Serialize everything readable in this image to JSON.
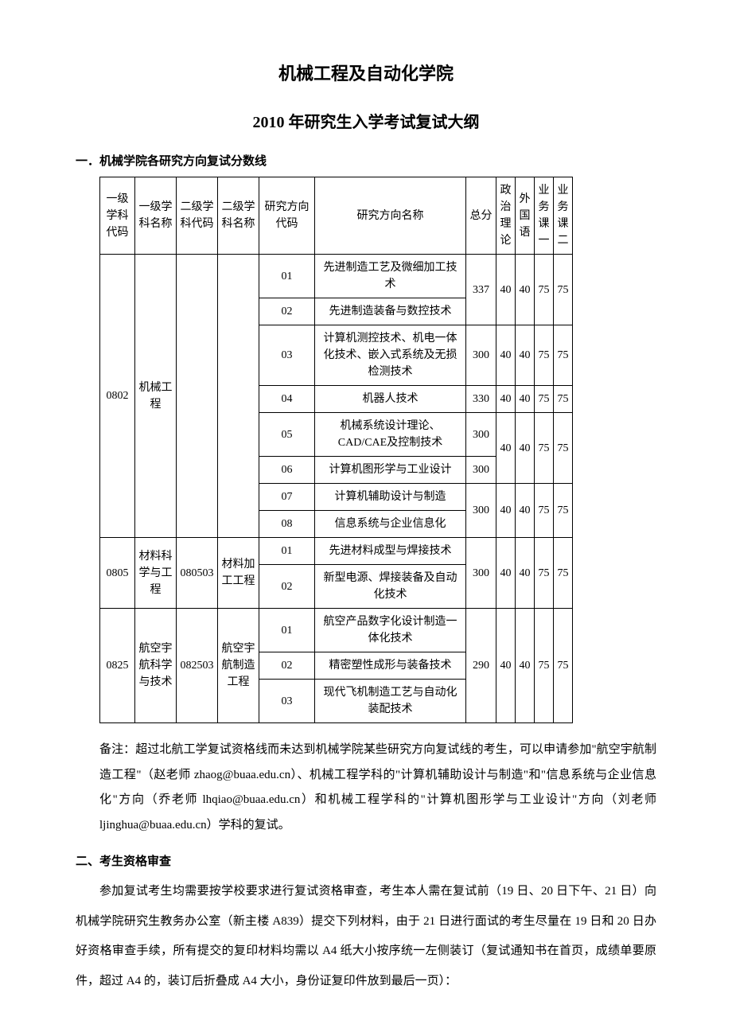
{
  "titles": {
    "main": "机械工程及自动化学院",
    "sub": "2010 年研究生入学考试复试大纲"
  },
  "section1": {
    "heading": "一．机械学院各研究方向复试分数线",
    "headers": {
      "code1": "一级学科代码",
      "name1": "一级学科名称",
      "code2": "二级学科代码",
      "name2": "二级学科名称",
      "dircode": "研究方向代码",
      "dirname": "研究方向名称",
      "total": "总分",
      "pol": "政治理论",
      "for": "外国语",
      "c1": "业务课一",
      "c2": "业务课二"
    },
    "group1": {
      "code1": "0802",
      "name1": "机械工程",
      "rows": {
        "r1": {
          "code": "01",
          "name": "先进制造工艺及微细加工技术"
        },
        "r2": {
          "code": "02",
          "name": "先进制造装备与数控技术"
        },
        "r3": {
          "code": "03",
          "name": "计算机测控技术、机电一体化技术、嵌入式系统及无损检测技术"
        },
        "r4": {
          "code": "04",
          "name": "机器人技术"
        },
        "r5": {
          "code": "05",
          "name": "机械系统设计理论、CAD/CAE及控制技术"
        },
        "r6": {
          "code": "06",
          "name": "计算机图形学与工业设计"
        },
        "r7": {
          "code": "07",
          "name": "计算机辅助设计与制造"
        },
        "r8": {
          "code": "08",
          "name": "信息系统与企业信息化"
        }
      },
      "scores": {
        "s12": {
          "total": "337",
          "pol": "40",
          "for": "40",
          "c1": "75",
          "c2": "75"
        },
        "s3": {
          "total": "300",
          "pol": "40",
          "for": "40",
          "c1": "75",
          "c2": "75"
        },
        "s4": {
          "total": "330",
          "pol": "40",
          "for": "40",
          "c1": "75",
          "c2": "75"
        },
        "s5": {
          "total": "300"
        },
        "s6": {
          "total": "300"
        },
        "s56": {
          "pol": "40",
          "for": "40",
          "c1": "75",
          "c2": "75"
        },
        "s78": {
          "total": "300",
          "pol": "40",
          "for": "40",
          "c1": "75",
          "c2": "75"
        }
      }
    },
    "group2": {
      "code1": "0805",
      "name1": "材料科学与工程",
      "code2": "080503",
      "name2": "材料加工工程",
      "rows": {
        "r1": {
          "code": "01",
          "name": "先进材料成型与焊接技术"
        },
        "r2": {
          "code": "02",
          "name": "新型电源、焊接装备及自动化技术"
        }
      },
      "scores": {
        "total": "300",
        "pol": "40",
        "for": "40",
        "c1": "75",
        "c2": "75"
      }
    },
    "group3": {
      "code1": "0825",
      "name1": "航空宇航科学与技术",
      "code2": "082503",
      "name2": "航空宇航制造工程",
      "rows": {
        "r1": {
          "code": "01",
          "name": "航空产品数字化设计制造一体化技术"
        },
        "r2": {
          "code": "02",
          "name": "精密塑性成形与装备技术"
        },
        "r3": {
          "code": "03",
          "name": "现代飞机制造工艺与自动化装配技术"
        }
      },
      "scores": {
        "total": "290",
        "pol": "40",
        "for": "40",
        "c1": "75",
        "c2": "75"
      }
    },
    "note": "备注：超过北航工学复试资格线而未达到机械学院某些研究方向复试线的考生，可以申请参加\"航空宇航制造工程\"（赵老师 zhaog@buaa.edu.cn）、机械工程学科的\"计算机辅助设计与制造\"和\"信息系统与企业信息化\"方向（乔老师 lhqiao@buaa.edu.cn）和机械工程学科的\"计算机图形学与工业设计\"方向（刘老师 ljinghua@buaa.edu.cn）学科的复试。"
  },
  "section2": {
    "heading": "二、考生资格审查",
    "para": "参加复试考生均需要按学校要求进行复试资格审查，考生本人需在复试前（19 日、20 日下午、21 日）向机械学院研究生教务办公室（新主楼 A839）提交下列材料，由于 21 日进行面试的考生尽量在 19 日和 20 日办好资格审查手续，所有提交的复印材料均需以 A4 纸大小按序统一左侧装订（复试通知书在首页，成绩单要原件，超过 A4 的，装订后折叠成 A4 大小，身份证复印件放到最后一页）："
  }
}
